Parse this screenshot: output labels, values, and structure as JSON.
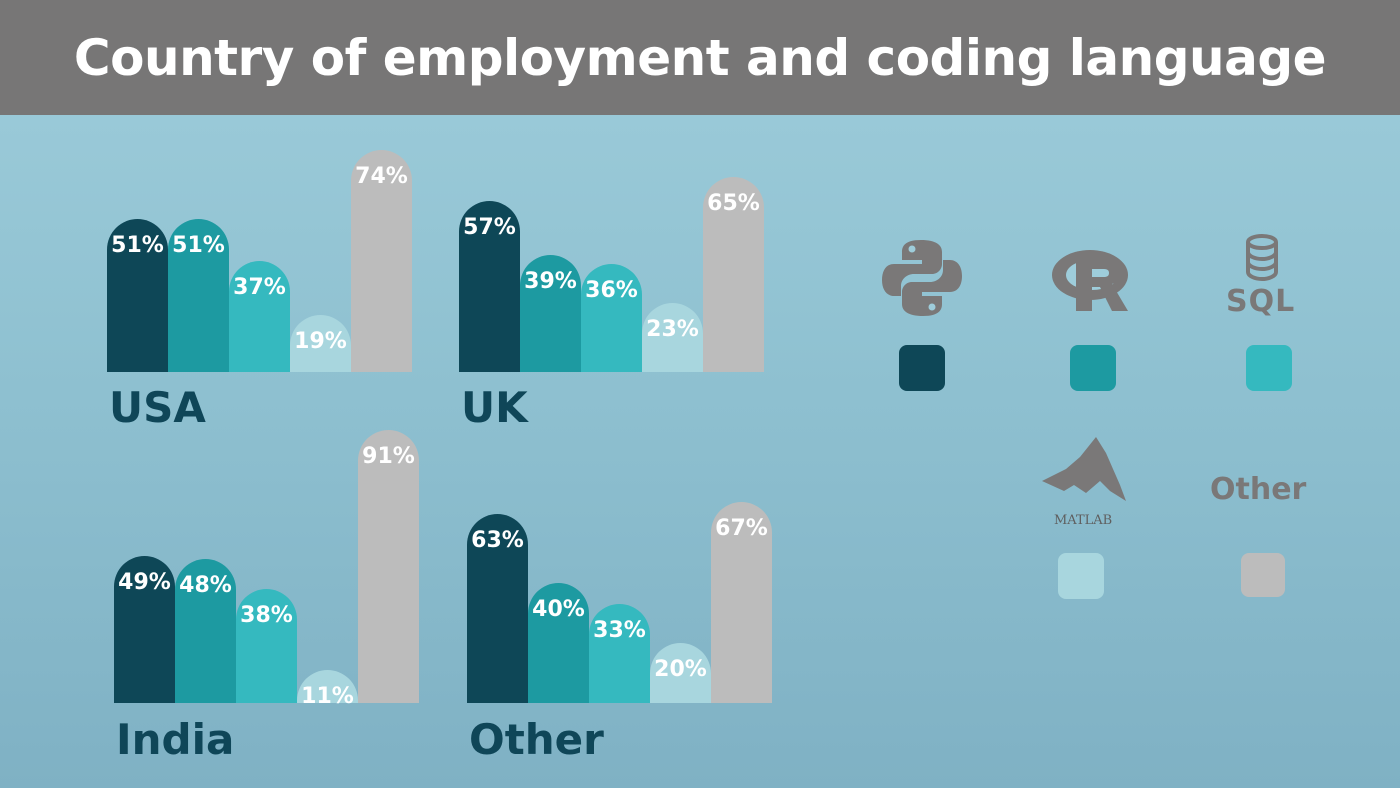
{
  "title": "Country of employment and coding language",
  "legend": {
    "python": {
      "name": "python-icon",
      "color": "#0e4757"
    },
    "r": {
      "name": "r-icon",
      "color": "#1d9aa1"
    },
    "sql": {
      "name": "sql-icon",
      "text": "SQL",
      "color": "#35b9bf"
    },
    "matlab": {
      "name": "matlab-icon",
      "text": "MATLAB",
      "color": "#a8d6de"
    },
    "other": {
      "text": "Other",
      "color": "#bcbcbc"
    }
  },
  "chart_data": {
    "type": "bar",
    "series": [
      {
        "key": "python",
        "color": "#0e4757"
      },
      {
        "key": "r",
        "color": "#1d9aa1"
      },
      {
        "key": "sql",
        "color": "#35b9bf"
      },
      {
        "key": "matlab",
        "color": "#a8d6de"
      },
      {
        "key": "other",
        "color": "#bcbcbc"
      }
    ],
    "panels": [
      {
        "country": "USA",
        "values": [
          51,
          51,
          37,
          19,
          74
        ],
        "labels": [
          "51%",
          "51%",
          "37%",
          "19%",
          "74%"
        ]
      },
      {
        "country": "UK",
        "values": [
          57,
          39,
          36,
          23,
          65
        ],
        "labels": [
          "57%",
          "39%",
          "36%",
          "23%",
          "65%"
        ]
      },
      {
        "country": "India",
        "values": [
          49,
          48,
          38,
          11,
          91
        ],
        "labels": [
          "49%",
          "48%",
          "38%",
          "11%",
          "91%"
        ]
      },
      {
        "country": "Other",
        "values": [
          63,
          40,
          33,
          20,
          67
        ],
        "labels": [
          "63%",
          "40%",
          "33%",
          "20%",
          "67%"
        ]
      }
    ]
  }
}
